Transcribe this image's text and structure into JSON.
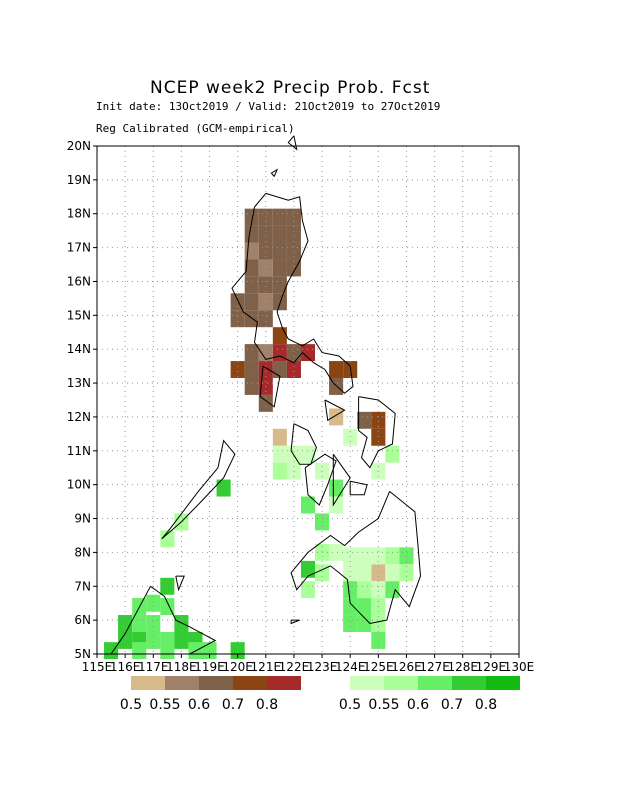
{
  "title": "NCEP week2 Precip Prob. Fcst",
  "subtitle_dates": "Init date: 13Oct2019 / Valid: 21Oct2019 to 27Oct2019",
  "subtitle_method": "Reg Calibrated (GCM-empirical)",
  "colors": {
    "dry": [
      "#d8b98a",
      "#a0826a",
      "#7f6048",
      "#8b4513",
      "#a52a2a"
    ],
    "wet": [
      "#ccffbb",
      "#aaff99",
      "#66ee66",
      "#33cc33",
      "#11bb11"
    ]
  },
  "legend": {
    "dry_labels": [
      "0.5",
      "0.55",
      "0.6",
      "0.7",
      "0.8"
    ],
    "wet_labels": [
      "0.5",
      "0.55",
      "0.6",
      "0.7",
      "0.8"
    ]
  },
  "axes": {
    "lat_labels": [
      "20N",
      "19N",
      "18N",
      "17N",
      "16N",
      "15N",
      "14N",
      "13N",
      "12N",
      "11N",
      "10N",
      "9N",
      "8N",
      "7N",
      "6N",
      "5N"
    ],
    "lon_labels": [
      "115E",
      "116E",
      "117E",
      "118E",
      "119E",
      "120E",
      "121E",
      "122E",
      "123E",
      "124E",
      "125E",
      "126E",
      "127E",
      "128E",
      "129E",
      "130E"
    ],
    "lat_range": [
      5,
      20
    ],
    "lon_range": [
      115,
      130
    ]
  },
  "grid_cells": {
    "dry": [
      [
        120.5,
        17.9,
        2
      ],
      [
        121.0,
        17.9,
        2
      ],
      [
        121.5,
        17.9,
        2
      ],
      [
        122.0,
        17.9,
        2
      ],
      [
        120.5,
        17.4,
        2
      ],
      [
        121.0,
        17.4,
        2
      ],
      [
        121.5,
        17.4,
        2
      ],
      [
        122.0,
        17.4,
        2
      ],
      [
        120.5,
        16.9,
        1
      ],
      [
        121.0,
        16.9,
        2
      ],
      [
        121.5,
        16.9,
        2
      ],
      [
        122.0,
        16.9,
        2
      ],
      [
        120.5,
        16.4,
        2
      ],
      [
        121.0,
        16.4,
        1
      ],
      [
        121.5,
        16.4,
        2
      ],
      [
        122.0,
        16.4,
        2
      ],
      [
        120.5,
        15.9,
        2
      ],
      [
        121.0,
        15.9,
        2
      ],
      [
        121.5,
        15.9,
        2
      ],
      [
        120.0,
        15.4,
        2
      ],
      [
        120.5,
        15.4,
        2
      ],
      [
        121.0,
        15.4,
        1
      ],
      [
        121.5,
        15.4,
        2
      ],
      [
        120.0,
        14.9,
        2
      ],
      [
        120.5,
        14.9,
        2
      ],
      [
        121.0,
        14.9,
        2
      ],
      [
        121.5,
        14.4,
        3
      ],
      [
        120.5,
        13.9,
        2
      ],
      [
        121.0,
        13.9,
        1
      ],
      [
        121.5,
        13.9,
        4
      ],
      [
        122.0,
        13.9,
        2
      ],
      [
        122.5,
        13.9,
        4
      ],
      [
        120.0,
        13.4,
        3
      ],
      [
        120.5,
        13.4,
        2
      ],
      [
        121.0,
        13.4,
        4
      ],
      [
        121.5,
        13.4,
        2
      ],
      [
        122.0,
        13.4,
        4
      ],
      [
        120.5,
        12.9,
        2
      ],
      [
        121.0,
        12.9,
        4
      ],
      [
        121.0,
        12.4,
        2
      ],
      [
        123.5,
        13.4,
        3
      ],
      [
        124.0,
        13.4,
        3
      ],
      [
        123.5,
        12.9,
        2
      ],
      [
        123.5,
        12.0,
        0
      ],
      [
        124.5,
        11.9,
        2
      ],
      [
        125.0,
        11.9,
        3
      ],
      [
        125.0,
        11.4,
        3
      ],
      [
        121.5,
        11.4,
        0
      ],
      [
        125.0,
        7.4,
        0
      ]
    ],
    "wet": [
      [
        121.5,
        10.9,
        0
      ],
      [
        122.0,
        10.9,
        0
      ],
      [
        122.5,
        10.9,
        0
      ],
      [
        121.5,
        10.4,
        1
      ],
      [
        122.0,
        10.4,
        0
      ],
      [
        123.0,
        10.4,
        0
      ],
      [
        123.5,
        9.9,
        2
      ],
      [
        122.5,
        9.4,
        2
      ],
      [
        123.0,
        8.9,
        2
      ],
      [
        123.5,
        9.4,
        0
      ],
      [
        119.5,
        9.9,
        3
      ],
      [
        118.0,
        8.9,
        1
      ],
      [
        117.5,
        8.4,
        1
      ],
      [
        123.0,
        8.0,
        1
      ],
      [
        123.5,
        8.0,
        0
      ],
      [
        124.0,
        7.9,
        0
      ],
      [
        124.5,
        7.9,
        0
      ],
      [
        125.0,
        7.9,
        0
      ],
      [
        125.5,
        7.9,
        1
      ],
      [
        126.0,
        7.9,
        2
      ],
      [
        124.0,
        7.4,
        0
      ],
      [
        124.5,
        7.4,
        0
      ],
      [
        125.5,
        7.4,
        0
      ],
      [
        126.0,
        7.4,
        1
      ],
      [
        123.0,
        7.4,
        1
      ],
      [
        122.5,
        7.5,
        3
      ],
      [
        122.5,
        6.9,
        1
      ],
      [
        124.0,
        6.9,
        2
      ],
      [
        124.5,
        6.9,
        1
      ],
      [
        125.0,
        6.9,
        0
      ],
      [
        125.5,
        6.9,
        2
      ],
      [
        124.0,
        6.4,
        2
      ],
      [
        124.5,
        6.4,
        2
      ],
      [
        125.0,
        6.4,
        1
      ],
      [
        124.0,
        5.9,
        2
      ],
      [
        124.5,
        5.9,
        2
      ],
      [
        125.0,
        5.9,
        1
      ],
      [
        125.0,
        5.4,
        2
      ],
      [
        117.5,
        7.0,
        3
      ],
      [
        117.0,
        6.5,
        2
      ],
      [
        116.5,
        6.4,
        2
      ],
      [
        117.5,
        6.4,
        2
      ],
      [
        116.0,
        5.9,
        3
      ],
      [
        116.5,
        5.9,
        2
      ],
      [
        117.0,
        5.9,
        2
      ],
      [
        118.0,
        5.9,
        3
      ],
      [
        116.0,
        5.4,
        3
      ],
      [
        116.5,
        5.4,
        3
      ],
      [
        117.0,
        5.4,
        2
      ],
      [
        117.5,
        5.4,
        2
      ],
      [
        118.0,
        5.4,
        3
      ],
      [
        118.5,
        5.4,
        3
      ],
      [
        115.5,
        5.1,
        3
      ],
      [
        116.5,
        5.1,
        2
      ],
      [
        117.5,
        5.1,
        2
      ],
      [
        118.5,
        5.1,
        2
      ],
      [
        119.0,
        5.1,
        2
      ],
      [
        120.0,
        5.1,
        3
      ],
      [
        125.5,
        10.9,
        1
      ],
      [
        125.0,
        10.4,
        0
      ],
      [
        124.0,
        11.4,
        0
      ]
    ]
  },
  "coastlines": [
    [
      [
        121.0,
        18.6
      ],
      [
        121.8,
        18.4
      ],
      [
        122.2,
        18.5
      ],
      [
        122.3,
        17.8
      ],
      [
        122.5,
        17.2
      ],
      [
        122.2,
        16.6
      ],
      [
        121.8,
        16.0
      ],
      [
        121.6,
        15.6
      ],
      [
        121.4,
        15.1
      ],
      [
        121.6,
        14.6
      ],
      [
        121.8,
        14.3
      ],
      [
        122.3,
        14.1
      ],
      [
        122.7,
        14.3
      ],
      [
        123.0,
        13.9
      ],
      [
        123.6,
        13.8
      ],
      [
        124.0,
        13.5
      ],
      [
        124.1,
        12.9
      ],
      [
        123.8,
        12.7
      ],
      [
        123.4,
        13.0
      ],
      [
        123.1,
        13.4
      ],
      [
        122.7,
        13.6
      ],
      [
        122.3,
        13.9
      ],
      [
        122.0,
        13.6
      ],
      [
        121.5,
        13.8
      ],
      [
        121.0,
        13.7
      ],
      [
        120.6,
        14.2
      ],
      [
        120.7,
        14.8
      ],
      [
        120.2,
        15.1
      ],
      [
        119.8,
        15.8
      ],
      [
        120.3,
        16.3
      ],
      [
        120.4,
        17.3
      ],
      [
        120.6,
        18.2
      ],
      [
        121.0,
        18.6
      ]
    ],
    [
      [
        124.3,
        12.6
      ],
      [
        125.0,
        12.5
      ],
      [
        125.6,
        12.1
      ],
      [
        125.5,
        11.2
      ],
      [
        125.0,
        11.0
      ],
      [
        124.7,
        10.5
      ],
      [
        124.4,
        10.8
      ],
      [
        124.6,
        11.4
      ],
      [
        124.3,
        11.6
      ],
      [
        124.3,
        12.6
      ]
    ],
    [
      [
        122.0,
        11.8
      ],
      [
        122.5,
        11.6
      ],
      [
        122.8,
        11.1
      ],
      [
        122.6,
        10.6
      ],
      [
        122.2,
        10.6
      ],
      [
        121.9,
        11.0
      ],
      [
        122.0,
        11.8
      ]
    ],
    [
      [
        122.4,
        10.5
      ],
      [
        123.1,
        10.9
      ],
      [
        123.5,
        10.7
      ],
      [
        123.2,
        10.0
      ],
      [
        122.9,
        9.4
      ],
      [
        122.5,
        9.7
      ],
      [
        122.4,
        10.5
      ]
    ],
    [
      [
        123.4,
        10.9
      ],
      [
        124.0,
        10.2
      ],
      [
        123.4,
        9.4
      ],
      [
        123.4,
        10.9
      ]
    ],
    [
      [
        124.0,
        10.1
      ],
      [
        124.6,
        10.0
      ],
      [
        124.5,
        9.7
      ],
      [
        124.0,
        9.7
      ],
      [
        124.0,
        10.1
      ]
    ],
    [
      [
        119.3,
        10.5
      ],
      [
        119.5,
        11.3
      ],
      [
        119.9,
        10.9
      ],
      [
        119.5,
        10.2
      ],
      [
        118.7,
        9.5
      ],
      [
        118.0,
        8.9
      ],
      [
        117.3,
        8.4
      ],
      [
        117.6,
        8.7
      ],
      [
        118.6,
        9.8
      ],
      [
        119.3,
        10.5
      ]
    ],
    [
      [
        120.9,
        13.5
      ],
      [
        121.5,
        13.2
      ],
      [
        121.3,
        12.3
      ],
      [
        120.8,
        12.6
      ],
      [
        120.9,
        13.5
      ]
    ],
    [
      [
        123.1,
        12.5
      ],
      [
        123.8,
        12.2
      ],
      [
        123.2,
        11.9
      ],
      [
        123.1,
        12.5
      ]
    ],
    [
      [
        125.4,
        9.8
      ],
      [
        126.3,
        9.2
      ],
      [
        126.4,
        8.3
      ],
      [
        126.5,
        7.3
      ],
      [
        126.1,
        6.4
      ],
      [
        125.6,
        6.9
      ],
      [
        125.3,
        6.0
      ],
      [
        124.7,
        5.9
      ],
      [
        124.0,
        6.5
      ],
      [
        123.9,
        7.2
      ],
      [
        123.3,
        7.6
      ],
      [
        122.5,
        7.3
      ],
      [
        122.1,
        6.9
      ],
      [
        121.9,
        7.4
      ],
      [
        122.5,
        8.0
      ],
      [
        123.3,
        8.5
      ],
      [
        123.8,
        8.2
      ],
      [
        124.3,
        8.6
      ],
      [
        125.0,
        9.0
      ],
      [
        125.4,
        9.8
      ]
    ],
    [
      [
        121.9,
        6.0
      ],
      [
        121.9,
        5.9
      ],
      [
        122.2,
        6.0
      ],
      [
        121.9,
        6.0
      ]
    ],
    [
      [
        116.9,
        7.0
      ],
      [
        117.4,
        6.7
      ],
      [
        117.8,
        6.0
      ],
      [
        118.3,
        5.8
      ],
      [
        119.2,
        5.4
      ],
      [
        118.3,
        5.0
      ],
      [
        115.5,
        5.0
      ],
      [
        116.0,
        5.6
      ],
      [
        116.9,
        7.0
      ]
    ],
    [
      [
        117.8,
        7.3
      ],
      [
        117.9,
        6.9
      ],
      [
        118.1,
        7.3
      ],
      [
        117.8,
        7.3
      ]
    ],
    [
      [
        121.3,
        19.1
      ],
      [
        121.4,
        19.3
      ],
      [
        121.2,
        19.2
      ],
      [
        121.3,
        19.1
      ]
    ],
    [
      [
        122.0,
        20.3
      ],
      [
        122.1,
        19.9
      ],
      [
        121.8,
        20.1
      ],
      [
        122.0,
        20.3
      ]
    ]
  ]
}
